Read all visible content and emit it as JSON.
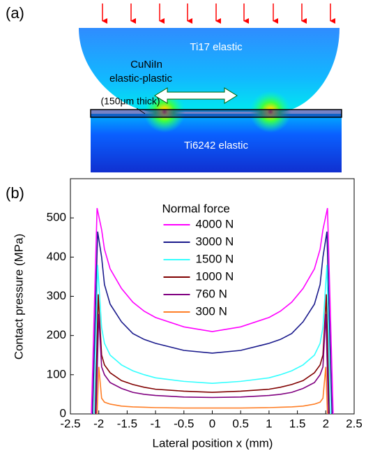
{
  "panel_a": {
    "label": "(a)",
    "top_part": "Ti17 elastic",
    "layer": [
      "CuNiIn",
      "elastic-plastic",
      "(150μm thick)"
    ],
    "bottom_part": "Ti6242 elastic"
  },
  "chart_data": {
    "type": "line",
    "panel_label": "(b)",
    "x_label": "Lateral position x (mm)",
    "y_label": "Contact pressure (MPa)",
    "legend_title": "Normal force",
    "legend": "upper center",
    "xlim": [
      -2.5,
      2.5
    ],
    "xticks": [
      -2.5,
      -2,
      -1.5,
      -1,
      -0.5,
      0,
      0.5,
      1,
      1.5,
      2,
      2.5
    ],
    "ylim": [
      0,
      600
    ],
    "yticks": [
      0,
      100,
      200,
      300,
      400,
      500
    ],
    "series": [
      {
        "name": "4000 N",
        "color": "#ff00ff",
        "x": [
          -2.13,
          -2.03,
          -1.95,
          -1.9,
          -1.8,
          -1.6,
          -1.4,
          -1.2,
          -1.0,
          -0.5,
          0,
          0.5,
          1.0,
          1.2,
          1.4,
          1.6,
          1.8,
          1.9,
          1.95,
          2.03,
          2.13
        ],
        "values": [
          0,
          525,
          470,
          420,
          370,
          320,
          285,
          262,
          246,
          222,
          210,
          222,
          246,
          262,
          285,
          320,
          370,
          420,
          470,
          525,
          0
        ]
      },
      {
        "name": "3000 N",
        "color": "#1a1a8c",
        "x": [
          -2.11,
          -2.02,
          -1.95,
          -1.9,
          -1.8,
          -1.6,
          -1.4,
          -1.2,
          -1.0,
          -0.5,
          0,
          0.5,
          1.0,
          1.2,
          1.4,
          1.6,
          1.8,
          1.9,
          1.95,
          2.02,
          2.11
        ],
        "values": [
          0,
          465,
          400,
          330,
          280,
          235,
          205,
          190,
          180,
          162,
          155,
          162,
          180,
          190,
          205,
          235,
          280,
          330,
          400,
          465,
          0
        ]
      },
      {
        "name": "1500 N",
        "color": "#33ffff",
        "x": [
          -2.08,
          -2.02,
          -1.95,
          -1.9,
          -1.8,
          -1.6,
          -1.4,
          -1.2,
          -1.0,
          -0.5,
          0,
          0.5,
          1.0,
          1.2,
          1.4,
          1.6,
          1.8,
          1.9,
          1.95,
          2.02,
          2.08
        ],
        "values": [
          0,
          380,
          220,
          180,
          150,
          125,
          110,
          100,
          92,
          83,
          78,
          83,
          92,
          100,
          110,
          125,
          150,
          180,
          220,
          380,
          0
        ]
      },
      {
        "name": "1000 N",
        "color": "#800000",
        "x": [
          -2.06,
          -2.01,
          -1.95,
          -1.9,
          -1.8,
          -1.6,
          -1.4,
          -1.2,
          -1.0,
          -0.5,
          0,
          0.5,
          1.0,
          1.2,
          1.4,
          1.6,
          1.8,
          1.9,
          1.95,
          2.01,
          2.06
        ],
        "values": [
          0,
          305,
          150,
          125,
          105,
          85,
          75,
          68,
          63,
          58,
          55,
          58,
          63,
          68,
          75,
          85,
          105,
          125,
          150,
          305,
          0
        ]
      },
      {
        "name": "760 N",
        "color": "#800080",
        "x": [
          -2.05,
          -2.0,
          -1.95,
          -1.9,
          -1.8,
          -1.6,
          -1.4,
          -1.2,
          -1.0,
          -0.5,
          0,
          0.5,
          1.0,
          1.2,
          1.4,
          1.6,
          1.8,
          1.9,
          1.95,
          2.0,
          2.05
        ],
        "values": [
          0,
          255,
          120,
          100,
          80,
          65,
          55,
          50,
          47,
          43,
          42,
          43,
          47,
          50,
          55,
          65,
          80,
          100,
          120,
          255,
          0
        ]
      },
      {
        "name": "300 N",
        "color": "#ff7f27",
        "x": [
          -2.03,
          -2.0,
          -1.95,
          -1.9,
          -1.8,
          -1.6,
          -1.4,
          -1.2,
          -1.0,
          -0.5,
          0,
          0.5,
          1.0,
          1.2,
          1.4,
          1.6,
          1.8,
          1.9,
          1.95,
          2.0,
          2.03
        ],
        "values": [
          0,
          120,
          40,
          30,
          25,
          20,
          18,
          17,
          16,
          15,
          15,
          15,
          16,
          17,
          18,
          20,
          25,
          30,
          40,
          120,
          0
        ]
      }
    ]
  }
}
